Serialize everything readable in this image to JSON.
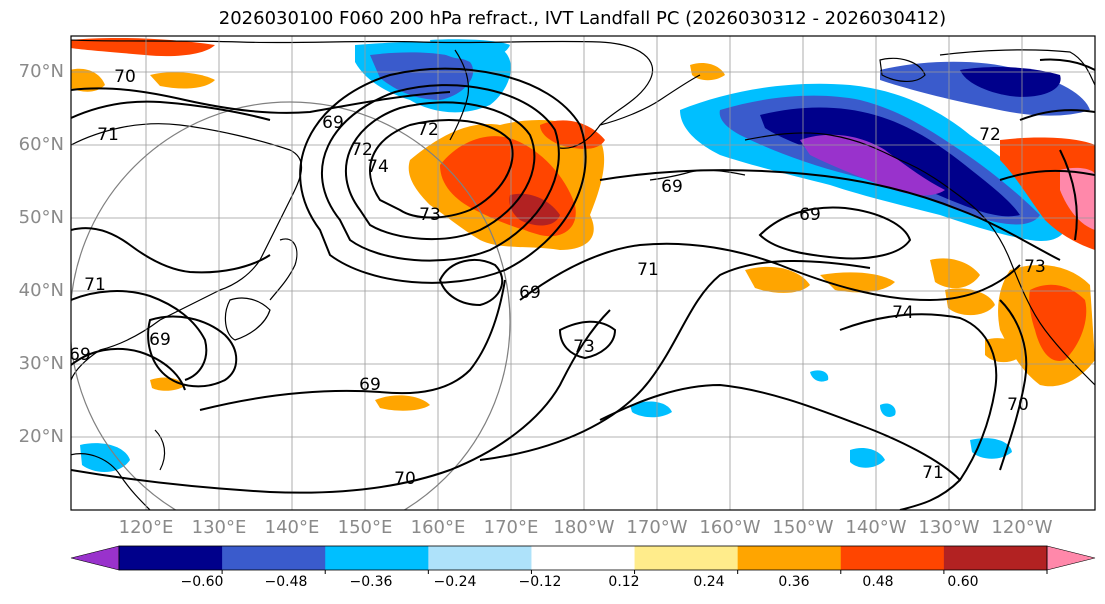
{
  "title": "2026030100 F060 200 hPa refract., IVT Landfall PC (2026030312 - 2026030412)",
  "map": {
    "lat_labels": [
      "70°N",
      "60°N",
      "50°N",
      "40°N",
      "30°N",
      "20°N"
    ],
    "lon_labels": [
      "120°E",
      "130°E",
      "140°E",
      "150°E",
      "160°E",
      "170°E",
      "180°W",
      "170°W",
      "160°W",
      "150°W",
      "140°W",
      "130°W",
      "120°W"
    ],
    "contour_labels": [
      "70",
      "71",
      "69",
      "72",
      "74",
      "73",
      "72",
      "69",
      "69",
      "69",
      "71",
      "69",
      "73",
      "69",
      "70",
      "71",
      "70",
      "74",
      "73",
      "72",
      "71",
      "69"
    ]
  },
  "colorbar": {
    "colors": [
      "#9932CC",
      "#00008B",
      "#3A5BCC",
      "#00BFFF",
      "#AEE2FA",
      "#FFFFFF",
      "#FFEC8B",
      "#FFA500",
      "#FF4500",
      "#B22222",
      "#FF88AA"
    ],
    "ticks": [
      "−0.60",
      "−0.48",
      "−0.36",
      "−0.24",
      "−0.12",
      "0.12",
      "0.24",
      "0.36",
      "0.48",
      "0.60"
    ]
  }
}
